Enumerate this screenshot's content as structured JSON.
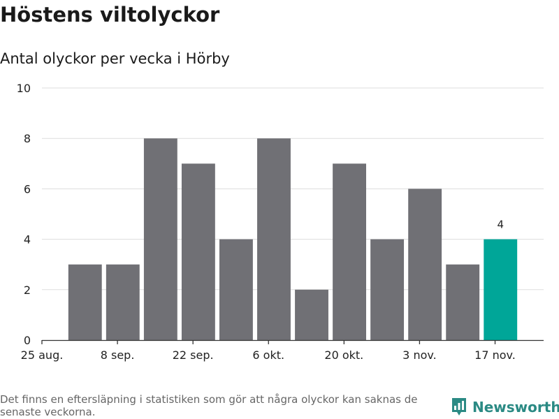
{
  "title": "Höstens viltolyckor",
  "subtitle": "Antal olyckor per vecka i Hörby",
  "footnote": "Det finns en eftersläpning i statistiken som gör att några olyckor kan saknas de senaste veckorna.",
  "brand": {
    "name": "Newsworthy",
    "icon": "newsworthy-logo-icon",
    "color": "#2b8a84"
  },
  "colors": {
    "bar": "#707075",
    "highlight": "#00a698",
    "grid": "#dddddd",
    "axis": "#333333"
  },
  "chart_data": {
    "type": "bar",
    "x": [
      "2024-09-02",
      "2024-09-09",
      "2024-09-16",
      "2024-09-23",
      "2024-09-30",
      "2024-10-07",
      "2024-10-14",
      "2024-10-21",
      "2024-10-28",
      "2024-11-04",
      "2024-11-11",
      "2024-11-18"
    ],
    "values": [
      3,
      3,
      8,
      7,
      4,
      8,
      2,
      7,
      4,
      6,
      3,
      4
    ],
    "highlight_index": 11,
    "data_labels": [
      {
        "index": 11,
        "text": "4"
      }
    ],
    "xlim": [
      "2024-08-25",
      "2024-11-26"
    ],
    "ylim": [
      0,
      10
    ],
    "yticks": [
      0,
      2,
      4,
      6,
      8,
      10
    ],
    "xticks": [
      {
        "date": "2024-08-25",
        "label": "25 aug."
      },
      {
        "date": "2024-09-08",
        "label": "8 sep."
      },
      {
        "date": "2024-09-22",
        "label": "22 sep."
      },
      {
        "date": "2024-10-06",
        "label": "6 okt."
      },
      {
        "date": "2024-10-20",
        "label": "20 okt."
      },
      {
        "date": "2024-11-03",
        "label": "3 nov."
      },
      {
        "date": "2024-11-17",
        "label": "17 nov."
      }
    ],
    "grid": true
  }
}
